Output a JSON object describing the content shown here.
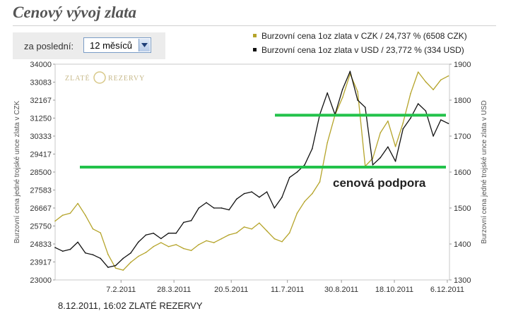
{
  "header": {
    "title": "Cenový vývoj zlata"
  },
  "period": {
    "label": "za poslední:",
    "selected": "12 měsíců"
  },
  "legend": [
    {
      "text": "Burzovní cena 1oz zlata v CZK / 24,737 % (6508 CZK)",
      "color": "#b5a42a"
    },
    {
      "text": "Burzovní cena 1oz zlata v USD / 23,772 % (334 USD)",
      "color": "#111111"
    }
  ],
  "watermark": {
    "left": "ZLATÉ",
    "right": "REZERVY"
  },
  "annotation": {
    "text": "cenová podpora"
  },
  "footer": {
    "text": "8.12.2011, 16:02 ZLATÉ REZERVY"
  },
  "chart_data": {
    "type": "line",
    "ylabel": "Burzovní cena jedné trojské unce zlata v CZK",
    "y2label": "Burzovní cena jedné trojské unce zlata v USD",
    "ylim": [
      23000,
      34000
    ],
    "y2lim": [
      1300,
      1900
    ],
    "yticks": [
      "23000",
      "23917",
      "24833",
      "25750",
      "26667",
      "27583",
      "28500",
      "29417",
      "30333",
      "31250",
      "32167",
      "33083",
      "34000"
    ],
    "y2ticks": [
      "1300",
      "1400",
      "1500",
      "1600",
      "1700",
      "1800",
      "1900"
    ],
    "xticks": [
      "7.2.2011",
      "28.3.2011",
      "20.5.2011",
      "11.7.2011",
      "30.8.2011",
      "18.10.2011",
      "6.12.2011"
    ],
    "xrange": [
      "2010-12-08",
      "2011-12-08"
    ],
    "grid": false,
    "support_lines_czk": [
      31400,
      28750
    ],
    "series": [
      {
        "name": "Burzovní cena 1oz zlata v CZK / 24,737 % (6508 CZK)",
        "axis": "left",
        "color": "#b5a42a",
        "points": [
          [
            "2010-12-08",
            26000
          ],
          [
            "2010-12-15",
            26300
          ],
          [
            "2010-12-22",
            26400
          ],
          [
            "2010-12-29",
            26900
          ],
          [
            "2011-01-05",
            26300
          ],
          [
            "2011-01-12",
            25600
          ],
          [
            "2011-01-19",
            25400
          ],
          [
            "2011-01-26",
            24300
          ],
          [
            "2011-02-02",
            23600
          ],
          [
            "2011-02-09",
            23500
          ],
          [
            "2011-02-16",
            23900
          ],
          [
            "2011-02-23",
            24200
          ],
          [
            "2011-03-02",
            24400
          ],
          [
            "2011-03-09",
            24700
          ],
          [
            "2011-03-16",
            24900
          ],
          [
            "2011-03-23",
            24700
          ],
          [
            "2011-03-30",
            24800
          ],
          [
            "2011-04-06",
            24600
          ],
          [
            "2011-04-13",
            24500
          ],
          [
            "2011-04-20",
            24800
          ],
          [
            "2011-04-27",
            25000
          ],
          [
            "2011-05-04",
            24900
          ],
          [
            "2011-05-11",
            25100
          ],
          [
            "2011-05-18",
            25300
          ],
          [
            "2011-05-25",
            25400
          ],
          [
            "2011-06-01",
            25700
          ],
          [
            "2011-06-08",
            25600
          ],
          [
            "2011-06-15",
            25900
          ],
          [
            "2011-06-22",
            25500
          ],
          [
            "2011-06-29",
            25100
          ],
          [
            "2011-07-06",
            24950
          ],
          [
            "2011-07-13",
            25400
          ],
          [
            "2011-07-20",
            26400
          ],
          [
            "2011-07-27",
            27000
          ],
          [
            "2011-08-03",
            27400
          ],
          [
            "2011-08-10",
            28000
          ],
          [
            "2011-08-17",
            30000
          ],
          [
            "2011-08-24",
            31400
          ],
          [
            "2011-08-31",
            32300
          ],
          [
            "2011-09-07",
            33500
          ],
          [
            "2011-09-14",
            32600
          ],
          [
            "2011-09-21",
            28800
          ],
          [
            "2011-09-28",
            29200
          ],
          [
            "2011-10-05",
            30500
          ],
          [
            "2011-10-12",
            31100
          ],
          [
            "2011-10-19",
            29800
          ],
          [
            "2011-10-26",
            31000
          ],
          [
            "2011-11-02",
            32500
          ],
          [
            "2011-11-09",
            33600
          ],
          [
            "2011-11-16",
            33100
          ],
          [
            "2011-11-23",
            32700
          ],
          [
            "2011-11-30",
            33200
          ],
          [
            "2011-12-07",
            33400
          ]
        ]
      },
      {
        "name": "Burzovní cena 1oz zlata v USD / 23,772 % (334 USD)",
        "axis": "right",
        "color": "#111111",
        "points": [
          [
            "2010-12-08",
            1390
          ],
          [
            "2010-12-15",
            1380
          ],
          [
            "2010-12-22",
            1385
          ],
          [
            "2010-12-29",
            1405
          ],
          [
            "2011-01-05",
            1375
          ],
          [
            "2011-01-12",
            1370
          ],
          [
            "2011-01-19",
            1360
          ],
          [
            "2011-01-26",
            1335
          ],
          [
            "2011-02-02",
            1340
          ],
          [
            "2011-02-09",
            1360
          ],
          [
            "2011-02-16",
            1375
          ],
          [
            "2011-02-23",
            1405
          ],
          [
            "2011-03-02",
            1425
          ],
          [
            "2011-03-09",
            1430
          ],
          [
            "2011-03-16",
            1415
          ],
          [
            "2011-03-23",
            1430
          ],
          [
            "2011-03-30",
            1430
          ],
          [
            "2011-04-06",
            1460
          ],
          [
            "2011-04-13",
            1465
          ],
          [
            "2011-04-20",
            1500
          ],
          [
            "2011-04-27",
            1515
          ],
          [
            "2011-05-04",
            1500
          ],
          [
            "2011-05-11",
            1500
          ],
          [
            "2011-05-18",
            1495
          ],
          [
            "2011-05-25",
            1525
          ],
          [
            "2011-06-01",
            1540
          ],
          [
            "2011-06-08",
            1545
          ],
          [
            "2011-06-15",
            1530
          ],
          [
            "2011-06-22",
            1545
          ],
          [
            "2011-06-29",
            1500
          ],
          [
            "2011-07-06",
            1530
          ],
          [
            "2011-07-13",
            1585
          ],
          [
            "2011-07-20",
            1600
          ],
          [
            "2011-07-27",
            1620
          ],
          [
            "2011-08-03",
            1665
          ],
          [
            "2011-08-10",
            1760
          ],
          [
            "2011-08-17",
            1820
          ],
          [
            "2011-08-24",
            1760
          ],
          [
            "2011-08-31",
            1830
          ],
          [
            "2011-09-07",
            1880
          ],
          [
            "2011-09-14",
            1800
          ],
          [
            "2011-09-21",
            1780
          ],
          [
            "2011-09-28",
            1620
          ],
          [
            "2011-10-05",
            1640
          ],
          [
            "2011-10-12",
            1670
          ],
          [
            "2011-10-19",
            1630
          ],
          [
            "2011-10-26",
            1720
          ],
          [
            "2011-11-02",
            1750
          ],
          [
            "2011-11-09",
            1790
          ],
          [
            "2011-11-16",
            1770
          ],
          [
            "2011-11-23",
            1700
          ],
          [
            "2011-11-30",
            1745
          ],
          [
            "2011-12-07",
            1735
          ]
        ]
      }
    ]
  }
}
